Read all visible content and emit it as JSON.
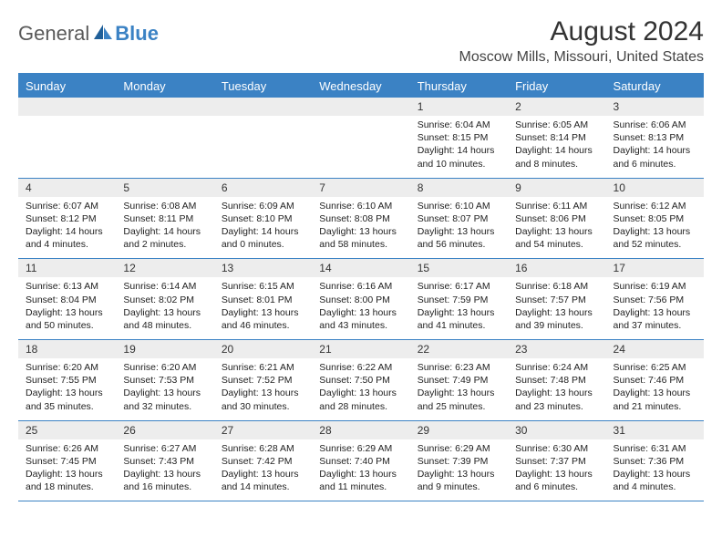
{
  "logo": {
    "text1": "General",
    "text2": "Blue"
  },
  "title": "August 2024",
  "location": "Moscow Mills, Missouri, United States",
  "colors": {
    "header_bg": "#3b82c4",
    "header_text": "#ffffff",
    "daynum_bg": "#ededed",
    "border": "#3b82c4",
    "body_text": "#222222"
  },
  "dayNames": [
    "Sunday",
    "Monday",
    "Tuesday",
    "Wednesday",
    "Thursday",
    "Friday",
    "Saturday"
  ],
  "weeks": [
    [
      {
        "day": "",
        "sunrise": "",
        "sunset": "",
        "daylight": ""
      },
      {
        "day": "",
        "sunrise": "",
        "sunset": "",
        "daylight": ""
      },
      {
        "day": "",
        "sunrise": "",
        "sunset": "",
        "daylight": ""
      },
      {
        "day": "",
        "sunrise": "",
        "sunset": "",
        "daylight": ""
      },
      {
        "day": "1",
        "sunrise": "Sunrise: 6:04 AM",
        "sunset": "Sunset: 8:15 PM",
        "daylight": "Daylight: 14 hours and 10 minutes."
      },
      {
        "day": "2",
        "sunrise": "Sunrise: 6:05 AM",
        "sunset": "Sunset: 8:14 PM",
        "daylight": "Daylight: 14 hours and 8 minutes."
      },
      {
        "day": "3",
        "sunrise": "Sunrise: 6:06 AM",
        "sunset": "Sunset: 8:13 PM",
        "daylight": "Daylight: 14 hours and 6 minutes."
      }
    ],
    [
      {
        "day": "4",
        "sunrise": "Sunrise: 6:07 AM",
        "sunset": "Sunset: 8:12 PM",
        "daylight": "Daylight: 14 hours and 4 minutes."
      },
      {
        "day": "5",
        "sunrise": "Sunrise: 6:08 AM",
        "sunset": "Sunset: 8:11 PM",
        "daylight": "Daylight: 14 hours and 2 minutes."
      },
      {
        "day": "6",
        "sunrise": "Sunrise: 6:09 AM",
        "sunset": "Sunset: 8:10 PM",
        "daylight": "Daylight: 14 hours and 0 minutes."
      },
      {
        "day": "7",
        "sunrise": "Sunrise: 6:10 AM",
        "sunset": "Sunset: 8:08 PM",
        "daylight": "Daylight: 13 hours and 58 minutes."
      },
      {
        "day": "8",
        "sunrise": "Sunrise: 6:10 AM",
        "sunset": "Sunset: 8:07 PM",
        "daylight": "Daylight: 13 hours and 56 minutes."
      },
      {
        "day": "9",
        "sunrise": "Sunrise: 6:11 AM",
        "sunset": "Sunset: 8:06 PM",
        "daylight": "Daylight: 13 hours and 54 minutes."
      },
      {
        "day": "10",
        "sunrise": "Sunrise: 6:12 AM",
        "sunset": "Sunset: 8:05 PM",
        "daylight": "Daylight: 13 hours and 52 minutes."
      }
    ],
    [
      {
        "day": "11",
        "sunrise": "Sunrise: 6:13 AM",
        "sunset": "Sunset: 8:04 PM",
        "daylight": "Daylight: 13 hours and 50 minutes."
      },
      {
        "day": "12",
        "sunrise": "Sunrise: 6:14 AM",
        "sunset": "Sunset: 8:02 PM",
        "daylight": "Daylight: 13 hours and 48 minutes."
      },
      {
        "day": "13",
        "sunrise": "Sunrise: 6:15 AM",
        "sunset": "Sunset: 8:01 PM",
        "daylight": "Daylight: 13 hours and 46 minutes."
      },
      {
        "day": "14",
        "sunrise": "Sunrise: 6:16 AM",
        "sunset": "Sunset: 8:00 PM",
        "daylight": "Daylight: 13 hours and 43 minutes."
      },
      {
        "day": "15",
        "sunrise": "Sunrise: 6:17 AM",
        "sunset": "Sunset: 7:59 PM",
        "daylight": "Daylight: 13 hours and 41 minutes."
      },
      {
        "day": "16",
        "sunrise": "Sunrise: 6:18 AM",
        "sunset": "Sunset: 7:57 PM",
        "daylight": "Daylight: 13 hours and 39 minutes."
      },
      {
        "day": "17",
        "sunrise": "Sunrise: 6:19 AM",
        "sunset": "Sunset: 7:56 PM",
        "daylight": "Daylight: 13 hours and 37 minutes."
      }
    ],
    [
      {
        "day": "18",
        "sunrise": "Sunrise: 6:20 AM",
        "sunset": "Sunset: 7:55 PM",
        "daylight": "Daylight: 13 hours and 35 minutes."
      },
      {
        "day": "19",
        "sunrise": "Sunrise: 6:20 AM",
        "sunset": "Sunset: 7:53 PM",
        "daylight": "Daylight: 13 hours and 32 minutes."
      },
      {
        "day": "20",
        "sunrise": "Sunrise: 6:21 AM",
        "sunset": "Sunset: 7:52 PM",
        "daylight": "Daylight: 13 hours and 30 minutes."
      },
      {
        "day": "21",
        "sunrise": "Sunrise: 6:22 AM",
        "sunset": "Sunset: 7:50 PM",
        "daylight": "Daylight: 13 hours and 28 minutes."
      },
      {
        "day": "22",
        "sunrise": "Sunrise: 6:23 AM",
        "sunset": "Sunset: 7:49 PM",
        "daylight": "Daylight: 13 hours and 25 minutes."
      },
      {
        "day": "23",
        "sunrise": "Sunrise: 6:24 AM",
        "sunset": "Sunset: 7:48 PM",
        "daylight": "Daylight: 13 hours and 23 minutes."
      },
      {
        "day": "24",
        "sunrise": "Sunrise: 6:25 AM",
        "sunset": "Sunset: 7:46 PM",
        "daylight": "Daylight: 13 hours and 21 minutes."
      }
    ],
    [
      {
        "day": "25",
        "sunrise": "Sunrise: 6:26 AM",
        "sunset": "Sunset: 7:45 PM",
        "daylight": "Daylight: 13 hours and 18 minutes."
      },
      {
        "day": "26",
        "sunrise": "Sunrise: 6:27 AM",
        "sunset": "Sunset: 7:43 PM",
        "daylight": "Daylight: 13 hours and 16 minutes."
      },
      {
        "day": "27",
        "sunrise": "Sunrise: 6:28 AM",
        "sunset": "Sunset: 7:42 PM",
        "daylight": "Daylight: 13 hours and 14 minutes."
      },
      {
        "day": "28",
        "sunrise": "Sunrise: 6:29 AM",
        "sunset": "Sunset: 7:40 PM",
        "daylight": "Daylight: 13 hours and 11 minutes."
      },
      {
        "day": "29",
        "sunrise": "Sunrise: 6:29 AM",
        "sunset": "Sunset: 7:39 PM",
        "daylight": "Daylight: 13 hours and 9 minutes."
      },
      {
        "day": "30",
        "sunrise": "Sunrise: 6:30 AM",
        "sunset": "Sunset: 7:37 PM",
        "daylight": "Daylight: 13 hours and 6 minutes."
      },
      {
        "day": "31",
        "sunrise": "Sunrise: 6:31 AM",
        "sunset": "Sunset: 7:36 PM",
        "daylight": "Daylight: 13 hours and 4 minutes."
      }
    ]
  ]
}
